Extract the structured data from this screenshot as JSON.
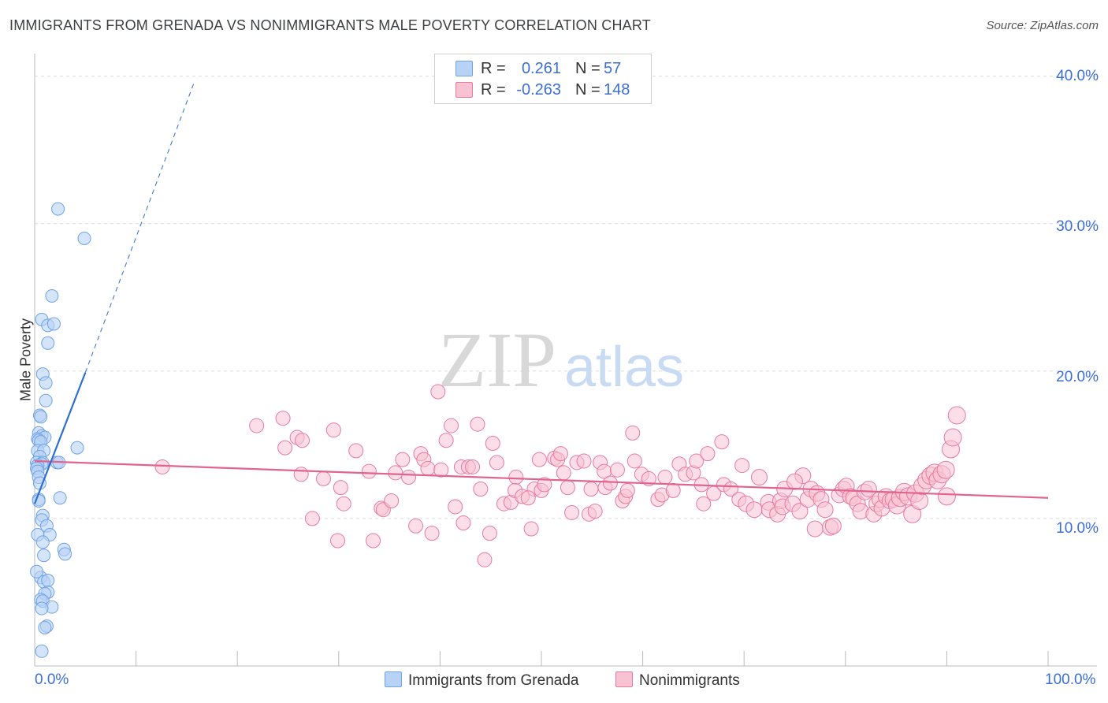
{
  "title": "IMMIGRANTS FROM GRENADA VS NONIMMIGRANTS MALE POVERTY CORRELATION CHART",
  "source": "Source: ZipAtlas.com",
  "watermark": {
    "zip": "ZIP",
    "atlas": "atlas"
  },
  "legend": {
    "series1": {
      "r_label": "R =",
      "r_value": "0.261",
      "n_label": "N =",
      "n_value": "57"
    },
    "series2": {
      "r_label": "R =",
      "r_value": "-0.263",
      "n_label": "N =",
      "n_value": "148"
    }
  },
  "bottom_legend": {
    "series1": "Immigrants from Grenada",
    "series2": "Nonimmigrants"
  },
  "colors": {
    "blue": "#6fa3e8",
    "blue_fill": "#b8d2f5",
    "blue_line": "#2e6fd0",
    "pink": "#e87aa0",
    "pink_fill": "#f7c3d3",
    "pink_line": "#e0648f",
    "tick_text": "#3b6fd6"
  },
  "chart_data": {
    "type": "scatter",
    "title": "IMMIGRANTS FROM GRENADA VS NONIMMIGRANTS MALE POVERTY CORRELATION CHART",
    "xlabel": "",
    "ylabel": "Male Poverty",
    "xlim": [
      0,
      100
    ],
    "ylim": [
      0,
      41
    ],
    "x_tick_labels": [
      "0.0%",
      "100.0%"
    ],
    "y_ticks": [
      10,
      20,
      30,
      40
    ],
    "y_tick_labels": [
      "10.0%",
      "20.0%",
      "30.0%",
      "40.0%"
    ],
    "grid": true,
    "series": [
      {
        "name": "Immigrants from Grenada",
        "r": 0.261,
        "n": 57,
        "trend": {
          "x0": 0,
          "y0": 11.0,
          "x1": 5.0,
          "y1": 19.9,
          "dash_to": {
            "x": 15.8,
            "y": 39.7
          }
        },
        "points": [
          [
            2.3,
            31.0
          ],
          [
            4.9,
            29.0
          ],
          [
            1.7,
            25.1
          ],
          [
            0.7,
            23.5
          ],
          [
            1.3,
            23.1
          ],
          [
            1.9,
            23.2
          ],
          [
            1.3,
            21.9
          ],
          [
            0.8,
            19.8
          ],
          [
            1.1,
            19.2
          ],
          [
            1.1,
            18.0
          ],
          [
            0.5,
            17.0
          ],
          [
            0.6,
            16.9
          ],
          [
            0.4,
            15.8
          ],
          [
            0.7,
            15.6
          ],
          [
            0.3,
            15.4
          ],
          [
            1.0,
            15.5
          ],
          [
            0.4,
            15.3
          ],
          [
            0.6,
            15.2
          ],
          [
            4.2,
            14.8
          ],
          [
            0.3,
            14.6
          ],
          [
            0.9,
            14.6
          ],
          [
            0.5,
            14.2
          ],
          [
            0.2,
            13.8
          ],
          [
            0.8,
            13.8
          ],
          [
            0.7,
            13.7
          ],
          [
            0.3,
            13.6
          ],
          [
            2.2,
            13.8
          ],
          [
            2.4,
            13.8
          ],
          [
            0.2,
            13.4
          ],
          [
            0.3,
            13.2
          ],
          [
            0.4,
            12.8
          ],
          [
            2.5,
            11.4
          ],
          [
            0.4,
            11.3
          ],
          [
            0.8,
            10.2
          ],
          [
            0.7,
            9.9
          ],
          [
            1.2,
            9.5
          ],
          [
            1.5,
            8.9
          ],
          [
            0.3,
            8.9
          ],
          [
            0.8,
            8.4
          ],
          [
            2.9,
            7.9
          ],
          [
            3.0,
            7.6
          ],
          [
            0.9,
            7.5
          ],
          [
            0.6,
            6.0
          ],
          [
            0.9,
            5.7
          ],
          [
            1.3,
            5.8
          ],
          [
            1.3,
            5.0
          ],
          [
            1.0,
            4.9
          ],
          [
            0.6,
            4.5
          ],
          [
            0.8,
            4.4
          ],
          [
            1.7,
            4.0
          ],
          [
            0.7,
            3.9
          ],
          [
            1.2,
            2.7
          ],
          [
            1.0,
            2.6
          ],
          [
            0.7,
            1.0
          ],
          [
            0.2,
            6.4
          ],
          [
            0.4,
            11.2
          ],
          [
            0.5,
            12.4
          ]
        ]
      },
      {
        "name": "Nonimmigrants",
        "r": -0.263,
        "n": 148,
        "trend": {
          "x0": 0,
          "y0": 13.9,
          "x1": 100,
          "y1": 11.4
        },
        "points": [
          [
            12.6,
            13.5
          ],
          [
            21.9,
            16.3
          ],
          [
            24.5,
            16.8
          ],
          [
            24.7,
            14.8
          ],
          [
            25.9,
            15.5
          ],
          [
            26.4,
            15.3
          ],
          [
            26.3,
            13.0
          ],
          [
            27.4,
            10.0
          ],
          [
            28.5,
            12.7
          ],
          [
            29.5,
            16.0
          ],
          [
            30.2,
            12.1
          ],
          [
            30.5,
            11.0
          ],
          [
            29.9,
            8.5
          ],
          [
            31.7,
            14.6
          ],
          [
            33.0,
            13.2
          ],
          [
            33.4,
            8.5
          ],
          [
            34.2,
            10.7
          ],
          [
            34.4,
            10.6
          ],
          [
            35.2,
            11.2
          ],
          [
            35.6,
            13.1
          ],
          [
            36.3,
            14.0
          ],
          [
            36.9,
            12.8
          ],
          [
            37.6,
            9.5
          ],
          [
            38.1,
            14.4
          ],
          [
            38.4,
            14.0
          ],
          [
            38.8,
            13.4
          ],
          [
            39.2,
            9.0
          ],
          [
            39.8,
            18.6
          ],
          [
            40.1,
            13.3
          ],
          [
            40.6,
            15.3
          ],
          [
            41.1,
            16.3
          ],
          [
            41.5,
            10.8
          ],
          [
            42.1,
            13.5
          ],
          [
            42.3,
            9.7
          ],
          [
            42.8,
            13.5
          ],
          [
            43.2,
            13.5
          ],
          [
            43.7,
            16.4
          ],
          [
            44.0,
            12.0
          ],
          [
            44.4,
            7.2
          ],
          [
            44.9,
            9.0
          ],
          [
            45.2,
            15.1
          ],
          [
            45.6,
            13.8
          ],
          [
            46.3,
            11.0
          ],
          [
            47.0,
            11.1
          ],
          [
            47.5,
            12.8
          ],
          [
            47.4,
            11.9
          ],
          [
            48.1,
            11.5
          ],
          [
            49.0,
            9.3
          ],
          [
            49.3,
            12.0
          ],
          [
            49.8,
            14.0
          ],
          [
            50.0,
            11.9
          ],
          [
            50.3,
            12.3
          ],
          [
            51.3,
            14.1
          ],
          [
            51.6,
            14.0
          ],
          [
            51.9,
            14.4
          ],
          [
            52.2,
            13.1
          ],
          [
            52.6,
            12.1
          ],
          [
            53.0,
            10.4
          ],
          [
            53.5,
            13.8
          ],
          [
            54.2,
            13.9
          ],
          [
            54.7,
            10.3
          ],
          [
            54.9,
            12.0
          ],
          [
            55.3,
            10.5
          ],
          [
            55.8,
            13.8
          ],
          [
            56.2,
            13.2
          ],
          [
            56.3,
            12.1
          ],
          [
            56.8,
            12.4
          ],
          [
            57.5,
            13.3
          ],
          [
            58.0,
            11.2
          ],
          [
            58.3,
            11.5
          ],
          [
            59.0,
            15.8
          ],
          [
            59.2,
            13.9
          ],
          [
            59.9,
            13.0
          ],
          [
            60.6,
            12.7
          ],
          [
            61.5,
            11.3
          ],
          [
            61.9,
            11.6
          ],
          [
            62.2,
            12.8
          ],
          [
            63.0,
            11.9
          ],
          [
            63.6,
            13.7
          ],
          [
            64.2,
            13.0
          ],
          [
            65.0,
            13.1
          ],
          [
            65.3,
            13.9
          ],
          [
            65.8,
            12.3
          ],
          [
            66.4,
            14.4
          ],
          [
            67.0,
            11.7
          ],
          [
            67.8,
            15.2
          ],
          [
            68.0,
            12.3
          ],
          [
            68.7,
            12.0
          ],
          [
            69.5,
            11.3
          ],
          [
            69.8,
            13.6
          ],
          [
            70.2,
            11.0
          ],
          [
            71.0,
            10.6
          ],
          [
            71.5,
            12.8
          ],
          [
            72.4,
            11.1
          ],
          [
            72.5,
            10.6
          ],
          [
            73.3,
            10.3
          ],
          [
            73.6,
            11.2
          ],
          [
            73.8,
            10.8
          ],
          [
            74.0,
            12.0
          ],
          [
            74.8,
            11.0
          ],
          [
            75.5,
            10.5
          ],
          [
            75.8,
            12.9
          ],
          [
            76.3,
            11.3
          ],
          [
            76.6,
            12.0
          ],
          [
            77.0,
            9.3
          ],
          [
            77.2,
            11.7
          ],
          [
            77.6,
            11.3
          ],
          [
            78.0,
            10.6
          ],
          [
            78.5,
            9.4
          ],
          [
            78.8,
            9.5
          ],
          [
            79.4,
            11.6
          ],
          [
            79.8,
            12.0
          ],
          [
            80.1,
            12.2
          ],
          [
            80.5,
            11.5
          ],
          [
            80.8,
            11.4
          ],
          [
            81.2,
            11.0
          ],
          [
            81.5,
            10.5
          ],
          [
            81.9,
            11.8
          ],
          [
            82.3,
            12.0
          ],
          [
            82.8,
            10.3
          ],
          [
            83.1,
            11.0
          ],
          [
            83.4,
            11.3
          ],
          [
            83.6,
            10.7
          ],
          [
            84.0,
            11.5
          ],
          [
            84.4,
            11.2
          ],
          [
            84.7,
            11.3
          ],
          [
            85.1,
            10.9
          ],
          [
            85.4,
            11.4
          ],
          [
            85.8,
            11.8
          ],
          [
            86.2,
            11.5
          ],
          [
            86.6,
            10.3
          ],
          [
            86.9,
            11.7
          ],
          [
            87.3,
            11.2
          ],
          [
            87.6,
            12.2
          ],
          [
            88.0,
            12.6
          ],
          [
            88.4,
            12.9
          ],
          [
            88.8,
            13.1
          ],
          [
            89.1,
            12.6
          ],
          [
            89.5,
            13.0
          ],
          [
            89.9,
            13.3
          ],
          [
            90.4,
            14.7
          ],
          [
            90.6,
            15.5
          ],
          [
            91.0,
            17.0
          ],
          [
            90.0,
            11.5
          ],
          [
            75.0,
            12.5
          ],
          [
            66.0,
            11.0
          ],
          [
            58.5,
            11.9
          ],
          [
            48.7,
            11.4
          ]
        ]
      }
    ]
  }
}
